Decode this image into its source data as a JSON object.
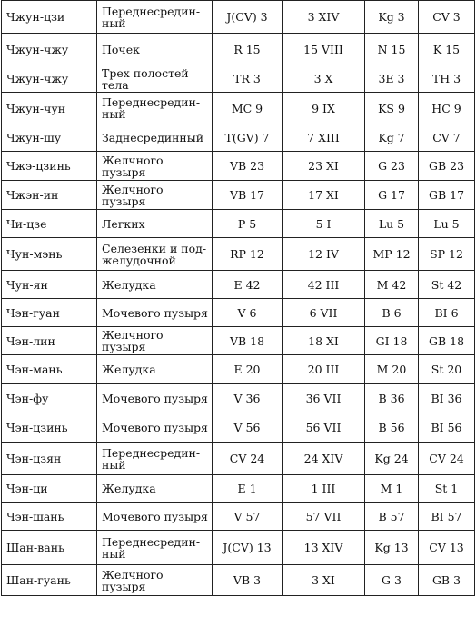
{
  "table": {
    "rows": [
      {
        "h": 36,
        "c": [
          "Чжун-цзи",
          "Переднесредин-|ный",
          "J(CV) 3",
          "3 XIV",
          "Kg 3",
          "CV 3"
        ]
      },
      {
        "h": 35,
        "c": [
          "Чжун-чжу",
          "Почек",
          "R 15",
          "15 VIII",
          "N 15",
          "K 15"
        ]
      },
      {
        "h": 30,
        "c": [
          "Чжун-чжу",
          "Трех полостей тела",
          "TR 3",
          "3 X",
          "3E 3",
          "TH 3"
        ]
      },
      {
        "h": 35,
        "c": [
          "Чжун-чун",
          "Переднесредин-|ный",
          "MC 9",
          "9 IX",
          "KS 9",
          "HC 9"
        ]
      },
      {
        "h": 30,
        "c": [
          "Чжун-шу",
          "Заднесрединный",
          "T(GV) 7",
          "7 XIII",
          "Kg 7",
          "CV 7"
        ]
      },
      {
        "h": 32,
        "c": [
          "Чжэ-цзинь",
          "Желчного пузыря",
          "VB 23",
          "23 XI",
          "G 23",
          "GB 23"
        ]
      },
      {
        "h": 32,
        "c": [
          "Чжэн-ин",
          "Желчного пузыря",
          "VB 17",
          "17 XI",
          "G 17",
          "GB 17"
        ]
      },
      {
        "h": 31,
        "c": [
          "Чи-цзе",
          "Легких",
          "P 5",
          "5 I",
          "Lu 5",
          "Lu 5"
        ]
      },
      {
        "h": 36,
        "c": [
          "Чун-мэнь",
          "Селезенки и под-|желудочной",
          "RP 12",
          "12 IV",
          "MP 12",
          "SP 12"
        ]
      },
      {
        "h": 31,
        "c": [
          "Чун-ян",
          "Желудка",
          "E 42",
          "42 III",
          "M 42",
          "St 42"
        ]
      },
      {
        "h": 31,
        "c": [
          "Чэн-гуан",
          "Мочевого пузыря",
          "V 6",
          "6 VII",
          "B 6",
          "BI 6"
        ]
      },
      {
        "h": 31,
        "c": [
          "Чэн-лин",
          "Желчного пузыря",
          "VB 18",
          "18 XI",
          "GI 18",
          "GB 18"
        ]
      },
      {
        "h": 32,
        "c": [
          "Чэн-мань",
          "Желудка",
          "E 20",
          "20 III",
          "M 20",
          "St 20"
        ]
      },
      {
        "h": 32,
        "c": [
          "Чэн-фу",
          "Мочевого пузыря",
          "V 36",
          "36 VII",
          "B 36",
          "BI 36"
        ]
      },
      {
        "h": 32,
        "c": [
          "Чэн-цзинь",
          "Мочевого пузыря",
          "V 56",
          "56 VII",
          "B 56",
          "BI 56"
        ]
      },
      {
        "h": 36,
        "c": [
          "Чэн-цзян",
          "Переднесредин-|ный",
          "CV 24",
          "24 XIV",
          "Kg 24",
          "CV 24"
        ]
      },
      {
        "h": 30,
        "c": [
          "Чэн-ци",
          "Желудка",
          "E 1",
          "1 III",
          "M 1",
          "St 1"
        ]
      },
      {
        "h": 31,
        "c": [
          "Чэн-шань",
          "Мочевого пузыря",
          "V 57",
          "57 VII",
          "B 57",
          "BI 57"
        ]
      },
      {
        "h": 38,
        "c": [
          "Шан-вань",
          "Переднесредин-|ный",
          "J(CV) 13",
          "13 XIV",
          "Kg 13",
          "CV 13"
        ]
      },
      {
        "h": 34,
        "c": [
          "Шан-гуань",
          "Желчного пузыря",
          "VB 3",
          "3 XI",
          "G 3",
          "GB 3"
        ]
      }
    ]
  }
}
